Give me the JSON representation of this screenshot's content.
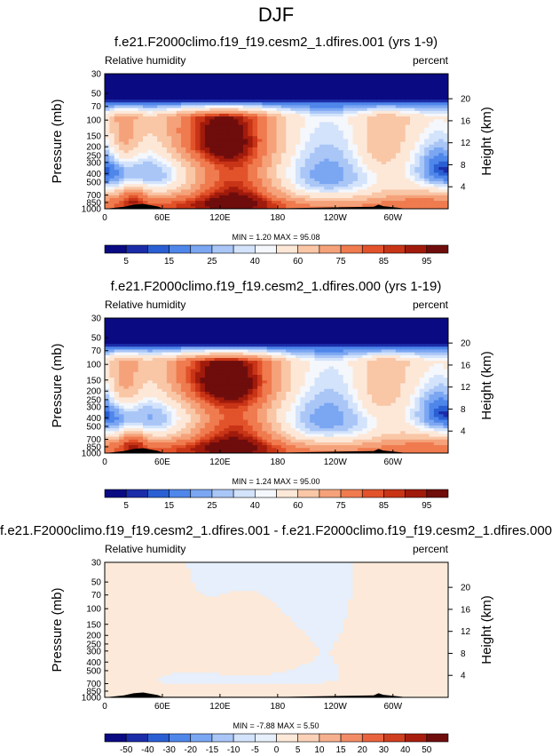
{
  "figure": {
    "title": "DJF"
  },
  "colors": {
    "rh_scale": [
      "#0a0a82",
      "#1b2ca8",
      "#2a5fd4",
      "#4f86ea",
      "#7ba6f2",
      "#a9c6f7",
      "#d3e3fb",
      "#f4f7fc",
      "#fde8d8",
      "#f9c6a6",
      "#f5a27a",
      "#ef7b4f",
      "#e2532b",
      "#c83416",
      "#a11b0c",
      "#6f0d0d"
    ],
    "diff_scale": [
      "#0a0a82",
      "#1b2ca8",
      "#2a5fd4",
      "#4f86ea",
      "#7ba6f2",
      "#a9c6f7",
      "#d3e3fb",
      "#e6effb",
      "#fde9d9",
      "#fbd2b8",
      "#f7b08f",
      "#f28c66",
      "#e9643e",
      "#cf3f1f",
      "#a81e0e",
      "#6f0d0d"
    ],
    "terrain": "#000000"
  },
  "chart_data": [
    {
      "type": "heatmap",
      "title": "f.e21.F2000climo.f19_f19.cesm2_1.dfires.001 (yrs 1-9)",
      "left_label": "Relative humidity",
      "right_label": "percent",
      "ylabel": "Pressure (mb)",
      "ylabel_right": "Height (km)",
      "x_ticks": [
        "0",
        "60E",
        "120E",
        "180",
        "120W",
        "60W"
      ],
      "x_tick_lon": [
        0,
        60,
        120,
        180,
        240,
        300
      ],
      "xlim": [
        0,
        357.5
      ],
      "y_ticks": [
        "30",
        "50",
        "70",
        "100",
        "150",
        "200",
        "250",
        "300",
        "400",
        "500",
        "700",
        "850",
        "1000"
      ],
      "y_tick_p": [
        30,
        50,
        70,
        100,
        150,
        200,
        250,
        300,
        400,
        500,
        700,
        850,
        1000
      ],
      "ylim": [
        1000,
        30
      ],
      "height_ticks": [
        "20",
        "16",
        "12",
        "8",
        "4"
      ],
      "height_km": [
        20,
        16,
        12,
        8,
        4
      ],
      "stats": "MIN =   1.20  MAX =  95.08",
      "colorbar_labels": [
        "5",
        "15",
        "25",
        "40",
        "60",
        "75",
        "85",
        "95"
      ],
      "colorbar_levels": [
        1,
        3,
        5,
        10,
        15,
        20,
        25,
        30,
        40,
        50,
        60,
        70,
        75,
        80,
        85,
        90,
        95
      ],
      "background_value": 55,
      "features": [
        {
          "lon": 20,
          "p": 160,
          "value": 82,
          "rlon": 12,
          "rp": 110
        },
        {
          "lon": 30,
          "p": 690,
          "value": 80,
          "rlon": 10,
          "rp": 160
        },
        {
          "lon": 50,
          "p": 400,
          "value": 15,
          "rlon": 35,
          "rp": 250
        },
        {
          "lon": 115,
          "p": 160,
          "value": 88,
          "rlon": 40,
          "rp": 100
        },
        {
          "lon": 140,
          "p": 520,
          "value": 85,
          "rlon": 32,
          "rp": 350
        },
        {
          "lon": 230,
          "p": 450,
          "value": 10,
          "rlon": 55,
          "rp": 400
        },
        {
          "lon": 285,
          "p": 200,
          "value": 70,
          "rlon": 18,
          "rp": 120
        },
        {
          "lon": 350,
          "p": 340,
          "value": 15,
          "rlon": 25,
          "rp": 200
        },
        {
          "lon": 180,
          "p": 900,
          "value": 82,
          "rlon": 180,
          "rp": 200
        }
      ],
      "top_band_value": 1,
      "terrain": [
        [
          20,
          950
        ],
        [
          30,
          900
        ],
        [
          40,
          880
        ],
        [
          55,
          940
        ],
        [
          60,
          985
        ],
        [
          100,
          985
        ],
        [
          190,
          985
        ],
        [
          280,
          950
        ],
        [
          285,
          900
        ],
        [
          290,
          935
        ],
        [
          310,
          985
        ]
      ]
    },
    {
      "type": "heatmap",
      "title": "f.e21.F2000climo.f19_f19.cesm2_1.dfires.000 (yrs 1-19)",
      "left_label": "Relative humidity",
      "right_label": "percent",
      "ylabel": "Pressure (mb)",
      "ylabel_right": "Height (km)",
      "x_ticks": [
        "0",
        "60E",
        "120E",
        "180",
        "120W",
        "60W"
      ],
      "x_tick_lon": [
        0,
        60,
        120,
        180,
        240,
        300
      ],
      "xlim": [
        0,
        357.5
      ],
      "y_ticks": [
        "30",
        "50",
        "70",
        "100",
        "150",
        "200",
        "250",
        "300",
        "400",
        "500",
        "700",
        "850",
        "1000"
      ],
      "y_tick_p": [
        30,
        50,
        70,
        100,
        150,
        200,
        250,
        300,
        400,
        500,
        700,
        850,
        1000
      ],
      "ylim": [
        1000,
        30
      ],
      "height_ticks": [
        "20",
        "16",
        "12",
        "8",
        "4"
      ],
      "height_km": [
        20,
        16,
        12,
        8,
        4
      ],
      "stats": "MIN =   1.24  MAX =  95.00",
      "colorbar_labels": [
        "5",
        "15",
        "25",
        "40",
        "60",
        "75",
        "85",
        "95"
      ],
      "colorbar_levels": [
        1,
        3,
        5,
        10,
        15,
        20,
        25,
        30,
        40,
        50,
        60,
        70,
        75,
        80,
        85,
        90,
        95
      ],
      "background_value": 55,
      "features": [
        {
          "lon": 20,
          "p": 170,
          "value": 82,
          "rlon": 12,
          "rp": 110
        },
        {
          "lon": 30,
          "p": 700,
          "value": 80,
          "rlon": 10,
          "rp": 160
        },
        {
          "lon": 50,
          "p": 400,
          "value": 15,
          "rlon": 35,
          "rp": 250
        },
        {
          "lon": 120,
          "p": 150,
          "value": 90,
          "rlon": 45,
          "rp": 90
        },
        {
          "lon": 140,
          "p": 520,
          "value": 85,
          "rlon": 32,
          "rp": 350
        },
        {
          "lon": 230,
          "p": 440,
          "value": 10,
          "rlon": 55,
          "rp": 400
        },
        {
          "lon": 285,
          "p": 200,
          "value": 70,
          "rlon": 18,
          "rp": 120
        },
        {
          "lon": 350,
          "p": 340,
          "value": 15,
          "rlon": 25,
          "rp": 200
        },
        {
          "lon": 180,
          "p": 900,
          "value": 82,
          "rlon": 180,
          "rp": 200
        }
      ],
      "top_band_value": 1,
      "terrain": [
        [
          20,
          950
        ],
        [
          30,
          900
        ],
        [
          40,
          880
        ],
        [
          55,
          940
        ],
        [
          60,
          985
        ],
        [
          100,
          985
        ],
        [
          190,
          985
        ],
        [
          280,
          950
        ],
        [
          285,
          900
        ],
        [
          290,
          935
        ],
        [
          310,
          985
        ]
      ]
    },
    {
      "type": "heatmap",
      "title": "f.e21.F2000climo.f19_f19.cesm2_1.dfires.001 - f.e21.F2000climo.f19_f19.cesm2_1.dfires.000",
      "left_label": "Relative humidity",
      "right_label": "percent",
      "ylabel": "Pressure (mb)",
      "ylabel_right": "Height (km)",
      "x_ticks": [
        "0",
        "60E",
        "120E",
        "180",
        "120W",
        "60W"
      ],
      "x_tick_lon": [
        0,
        60,
        120,
        180,
        240,
        300
      ],
      "xlim": [
        0,
        357.5
      ],
      "y_ticks": [
        "30",
        "50",
        "70",
        "100",
        "150",
        "200",
        "250",
        "300",
        "400",
        "500",
        "700",
        "850",
        "1000"
      ],
      "y_tick_p": [
        30,
        50,
        70,
        100,
        150,
        200,
        250,
        300,
        400,
        500,
        700,
        850,
        1000
      ],
      "ylim": [
        1000,
        30
      ],
      "height_ticks": [
        "20",
        "16",
        "12",
        "8",
        "4"
      ],
      "height_km": [
        20,
        16,
        12,
        8,
        4
      ],
      "stats": "MIN =  -7.88  MAX =   5.50",
      "colorbar_labels": [
        "-50",
        "-40",
        "-30",
        "-20",
        "-15",
        "-10",
        "-5",
        "0",
        "5",
        "10",
        "15",
        "20",
        "30",
        "40",
        "50"
      ],
      "colorbar_levels": [
        -50,
        -40,
        -30,
        -20,
        -15,
        -10,
        -5,
        0,
        5,
        10,
        15,
        20,
        30,
        40,
        50
      ],
      "background_value": -2,
      "features": [
        {
          "lon": 30,
          "p": 200,
          "value": 2,
          "rlon": 40,
          "rp": 300
        },
        {
          "lon": 150,
          "p": 300,
          "value": 2,
          "rlon": 50,
          "rp": 200
        },
        {
          "lon": 160,
          "p": 900,
          "value": 2,
          "rlon": 120,
          "rp": 150
        },
        {
          "lon": 300,
          "p": 400,
          "value": 2,
          "rlon": 40,
          "rp": 500
        },
        {
          "lon": 60,
          "p": 950,
          "value": 2,
          "rlon": 30,
          "rp": 100
        }
      ],
      "top_band_value": -2,
      "terrain": [
        [
          20,
          950
        ],
        [
          30,
          900
        ],
        [
          40,
          880
        ],
        [
          55,
          940
        ],
        [
          60,
          985
        ],
        [
          100,
          985
        ],
        [
          190,
          985
        ],
        [
          280,
          950
        ],
        [
          285,
          900
        ],
        [
          290,
          935
        ],
        [
          310,
          985
        ]
      ]
    }
  ]
}
